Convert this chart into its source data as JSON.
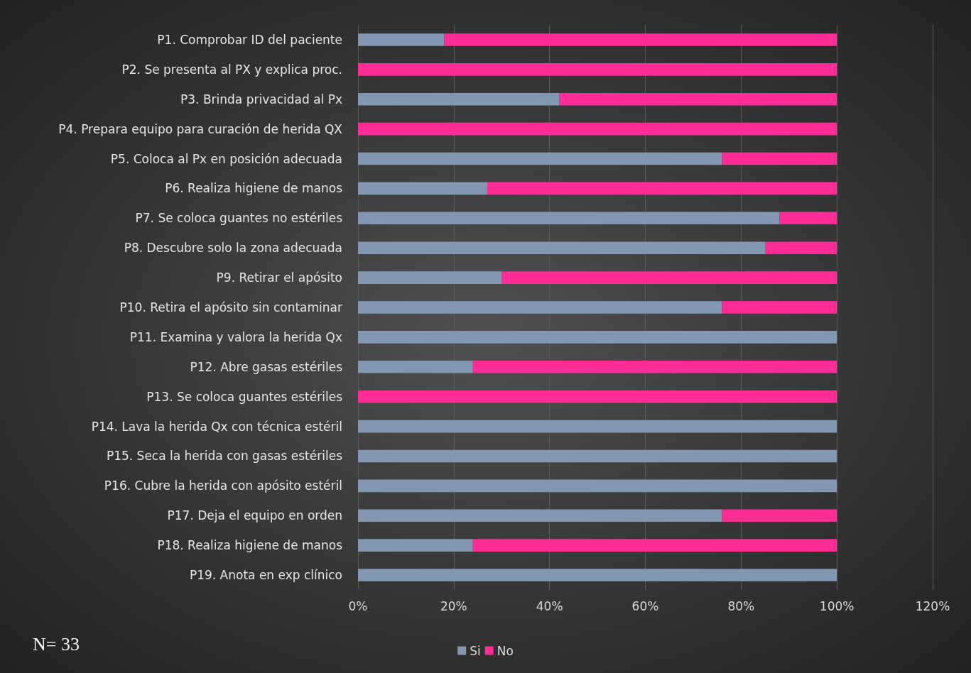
{
  "chart_data": {
    "type": "bar",
    "orientation": "horizontal",
    "stacked": true,
    "categories": [
      "P1. Comprobar ID del paciente",
      "P2. Se presenta al PX y explica proc.",
      "P3. Brinda privacidad al Px",
      "P4. Prepara equipo para curación de herida QX",
      "P5. Coloca al Px en posición adecuada",
      "P6. Realiza higiene de manos",
      "P7. Se coloca guantes no estériles",
      "P8. Descubre solo la zona adecuada",
      "P9. Retirar el apósito",
      "P10. Retira el apósito sin contaminar",
      "P11. Examina y valora la herida Qx",
      "P12. Abre gasas estériles",
      "P13. Se coloca guantes estériles",
      "P14. Lava la herida Qx con técnica estéril",
      "P15. Seca la herida con gasas estériles",
      "P16. Cubre la herida con apósito estéril",
      "P17. Deja el equipo en orden",
      "P18. Realiza higiene de manos",
      "P19. Anota en exp clínico"
    ],
    "series": [
      {
        "name": "Si",
        "color": "#8497b0",
        "values": [
          18,
          0,
          42,
          0,
          76,
          27,
          88,
          85,
          30,
          76,
          100,
          24,
          0,
          100,
          100,
          100,
          76,
          24,
          100
        ]
      },
      {
        "name": "No",
        "color": "#ff2d95",
        "values": [
          82,
          100,
          58,
          100,
          24,
          73,
          12,
          15,
          70,
          24,
          0,
          76,
          100,
          0,
          0,
          0,
          24,
          76,
          0
        ]
      }
    ],
    "xlim": [
      0,
      120
    ],
    "xticks": [
      {
        "value": 0,
        "label": "0%"
      },
      {
        "value": 20,
        "label": "20%"
      },
      {
        "value": 40,
        "label": "40%"
      },
      {
        "value": 60,
        "label": "60%"
      },
      {
        "value": 80,
        "label": "80%"
      },
      {
        "value": 100,
        "label": "100%"
      },
      {
        "value": 120,
        "label": "120%"
      }
    ],
    "grid": "x",
    "legend": "bottom",
    "annotations": [
      "N= 33"
    ]
  }
}
